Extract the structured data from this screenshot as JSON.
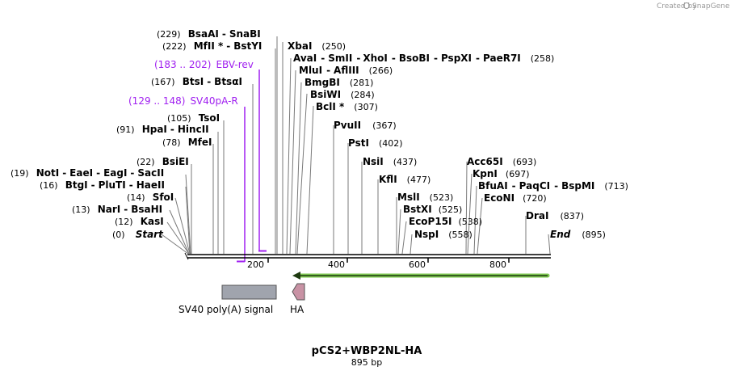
{
  "credit": {
    "created_by": "Created by",
    "app_name": "SnapGene"
  },
  "title": "pCS2+WBP2NL-HA",
  "length_label": "895 bp",
  "colors": {
    "primer": "#a020f0",
    "orf": "#7ec850",
    "polyA": "#a0a4ad",
    "tag": "#c892a4"
  },
  "axis_ticks": [
    "200",
    "400",
    "600",
    "800"
  ],
  "left_sites": [
    {
      "pos": "(229)",
      "names": [
        "BsaAI",
        "SnaBI"
      ]
    },
    {
      "pos": "(222)",
      "names": [
        "MfII *",
        "BstYI"
      ]
    },
    {
      "pos": "(167)",
      "names": [
        "BtsI",
        "BtsαI"
      ]
    },
    {
      "pos": "(105)",
      "names": [
        "TsoI"
      ]
    },
    {
      "pos": "(91)",
      "names": [
        "HpaI",
        "HincII"
      ]
    },
    {
      "pos": "(78)",
      "names": [
        "MfeI"
      ]
    },
    {
      "pos": "(22)",
      "names": [
        "BsiEI"
      ]
    },
    {
      "pos": "(19)",
      "names": [
        "NotI",
        "EaeI",
        "EagI",
        "SacII"
      ]
    },
    {
      "pos": "(16)",
      "names": [
        "BtgI",
        "PluTI",
        "HaeII"
      ]
    },
    {
      "pos": "(14)",
      "names": [
        "SfoI"
      ]
    },
    {
      "pos": "(13)",
      "names": [
        "NarI",
        "BsaHI"
      ]
    },
    {
      "pos": "(12)",
      "names": [
        "KasI"
      ]
    },
    {
      "pos": "(0)",
      "names": [
        "Start"
      ]
    }
  ],
  "right_sites": [
    {
      "pos": "(250)",
      "names": [
        "XbaI"
      ]
    },
    {
      "pos": "(258)",
      "names": [
        "AvaI",
        "SmII",
        "XhoI",
        "BsoBI",
        "PspXI",
        "PaeR7I"
      ]
    },
    {
      "pos": "(266)",
      "names": [
        "MluI",
        "AflIII"
      ]
    },
    {
      "pos": "(281)",
      "names": [
        "BmgBI"
      ]
    },
    {
      "pos": "(284)",
      "names": [
        "BsiWI"
      ]
    },
    {
      "pos": "(307)",
      "names": [
        "BclI *"
      ]
    },
    {
      "pos": "(367)",
      "names": [
        "PvuII"
      ]
    },
    {
      "pos": "(402)",
      "names": [
        "PstI"
      ]
    },
    {
      "pos": "(437)",
      "names": [
        "NsiI"
      ]
    },
    {
      "pos": "(477)",
      "names": [
        "KflI"
      ]
    },
    {
      "pos": "(523)",
      "names": [
        "MslI"
      ]
    },
    {
      "pos": "(525)",
      "names": [
        "BstXI"
      ]
    },
    {
      "pos": "(538)",
      "names": [
        "EcoP15I"
      ]
    },
    {
      "pos": "(558)",
      "names": [
        "NspI"
      ]
    },
    {
      "pos": "(693)",
      "names": [
        "Acc65I"
      ]
    },
    {
      "pos": "(697)",
      "names": [
        "KpnI"
      ]
    },
    {
      "pos": "(713)",
      "names": [
        "BfuAI",
        "PaqCI",
        "BspMI"
      ]
    },
    {
      "pos": "(720)",
      "names": [
        "EcoNI"
      ]
    },
    {
      "pos": "(837)",
      "names": [
        "DraI"
      ]
    },
    {
      "pos": "(895)",
      "names": [
        "End"
      ]
    }
  ],
  "primers": [
    {
      "pos": "(183 .. 202)",
      "name": "EBV-rev"
    },
    {
      "pos": "(129 .. 148)",
      "name": "SV40pA-R"
    }
  ],
  "features": [
    {
      "name": "SV40 poly(A) signal"
    },
    {
      "name": "HA"
    }
  ]
}
